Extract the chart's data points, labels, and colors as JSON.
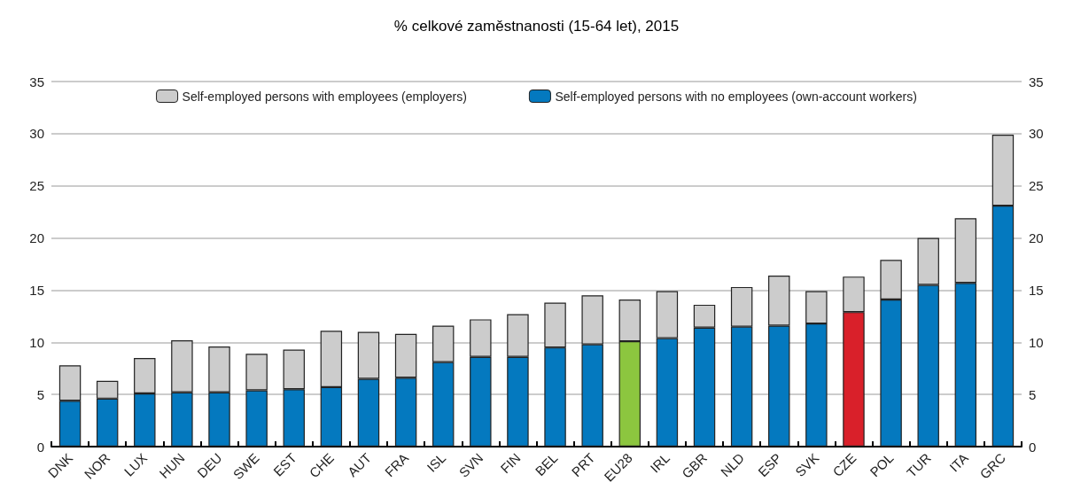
{
  "chart_data": {
    "type": "bar",
    "title": "% celkové zaměstnanosti (15-64 let), 2015",
    "categories": [
      "DNK",
      "NOR",
      "LUX",
      "HUN",
      "DEU",
      "SWE",
      "EST",
      "CHE",
      "AUT",
      "FRA",
      "ISL",
      "SVN",
      "FIN",
      "BEL",
      "PRT",
      "EU28",
      "IRL",
      "GBR",
      "NLD",
      "ESP",
      "SVK",
      "CZE",
      "POL",
      "TUR",
      "ITA",
      "GRC"
    ],
    "stacked": true,
    "series": [
      {
        "name": "Self-employed persons with no employees (own-account workers)",
        "color": "#0479bf",
        "colors": [
          "#0479bf",
          "#0479bf",
          "#0479bf",
          "#0479bf",
          "#0479bf",
          "#0479bf",
          "#0479bf",
          "#0479bf",
          "#0479bf",
          "#0479bf",
          "#0479bf",
          "#0479bf",
          "#0479bf",
          "#0479bf",
          "#0479bf",
          "#8cc63f",
          "#0479bf",
          "#0479bf",
          "#0479bf",
          "#0479bf",
          "#0479bf",
          "#d9202a",
          "#0479bf",
          "#0479bf",
          "#0479bf",
          "#0479bf"
        ],
        "values": [
          4.4,
          4.6,
          5.1,
          5.2,
          5.2,
          5.4,
          5.5,
          5.7,
          6.5,
          6.6,
          8.1,
          8.6,
          8.6,
          9.5,
          9.8,
          10.1,
          10.4,
          11.4,
          11.5,
          11.6,
          11.8,
          12.9,
          14.1,
          15.5,
          15.7,
          23.1
        ]
      },
      {
        "name": "Self-employed persons with employees (employers)",
        "color": "#cccccc",
        "values": [
          3.4,
          1.7,
          3.4,
          5.0,
          4.4,
          3.5,
          3.8,
          5.4,
          4.5,
          4.2,
          3.5,
          3.6,
          4.1,
          4.3,
          4.7,
          4.0,
          4.5,
          2.2,
          3.8,
          4.8,
          3.1,
          3.4,
          3.8,
          4.5,
          6.2,
          6.8
        ]
      }
    ],
    "ylim": [
      0,
      35
    ],
    "yticks": [
      0,
      5,
      10,
      15,
      20,
      25,
      30,
      35
    ],
    "y2lim": [
      0,
      35
    ],
    "y2ticks": [
      0,
      5,
      10,
      15,
      20,
      25,
      30,
      35
    ],
    "grid": "y",
    "legend": "top"
  }
}
